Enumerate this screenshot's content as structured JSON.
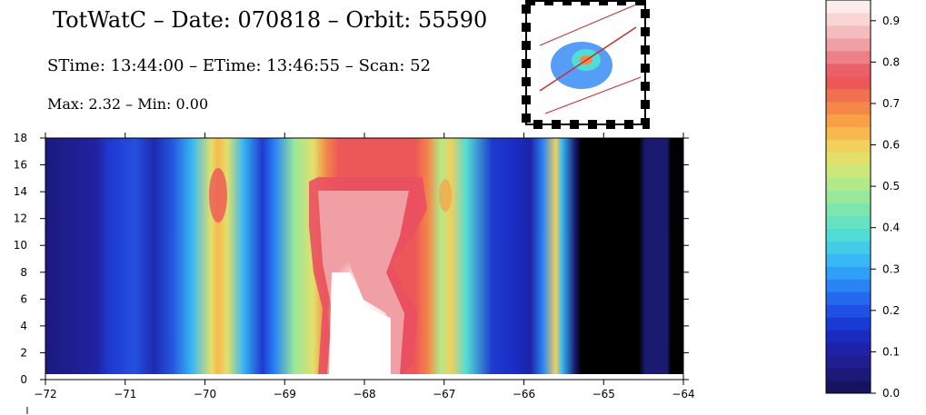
{
  "chart_data": {
    "type": "contour",
    "title": "TotWatC – Date: 070818 – Orbit: 55590",
    "subtitle": "STime: 13:44:00 – ETime: 13:46:55 – Scan: 52",
    "annotation": "Max: 2.32 – Min: 0.00",
    "xlim": [
      -72,
      -64
    ],
    "xticks": [
      {
        "value": -72,
        "label": "−72"
      },
      {
        "value": -71,
        "label": "−71"
      },
      {
        "value": -70,
        "label": "−70"
      },
      {
        "value": -69,
        "label": "−69"
      },
      {
        "value": -68,
        "label": "−68"
      },
      {
        "value": -67,
        "label": "−67"
      },
      {
        "value": -66,
        "label": "−66"
      },
      {
        "value": -65,
        "label": "−65"
      },
      {
        "value": -64,
        "label": "−64"
      }
    ],
    "ylim": [
      0,
      18
    ],
    "yticks": [
      0,
      2,
      4,
      6,
      8,
      10,
      12,
      14,
      16,
      18
    ],
    "colorbar": {
      "lim": [
        0,
        0.95
      ],
      "ticks": [
        {
          "value": 0,
          "label": "0.0"
        },
        0.1,
        0.2,
        0.3,
        0.4,
        0.5,
        0.6,
        0.7,
        0.8,
        0.9
      ],
      "colors": [
        "#16145e",
        "#1c1a78",
        "#201e90",
        "#1e22a8",
        "#1a2cc0",
        "#1a3ad6",
        "#1e50e6",
        "#2468ee",
        "#2a84f4",
        "#30a0f6",
        "#38b8f4",
        "#42cce8",
        "#52dcd6",
        "#66e2c0",
        "#7ee6ac",
        "#98e89a",
        "#b2ea8a",
        "#cce87a",
        "#e2e06a",
        "#f2d05c",
        "#f8b850",
        "#f8a048",
        "#f48848",
        "#f07050",
        "#ec5858",
        "#ea6068",
        "#ec8088",
        "#f0a0a4",
        "#f4bcbe",
        "#f8d6d6",
        "#fcecec"
      ]
    }
  }
}
